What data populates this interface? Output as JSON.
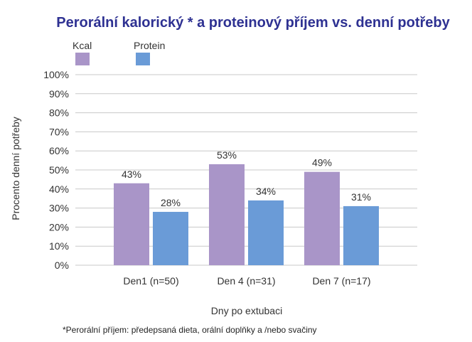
{
  "chart_data": {
    "type": "bar",
    "title": "Perorální kalorický * a proteinový příjem vs. denní potřeby",
    "xlabel": "Dny po extubaci",
    "ylabel": "Procento denní potřeby",
    "categories": [
      "Den1 (n=50)",
      "Den 4 (n=31)",
      "Den 7 (n=17)"
    ],
    "series": [
      {
        "name": "Kcal",
        "values": [
          43,
          53,
          49
        ],
        "data_labels": [
          "43%",
          "53%",
          "49%"
        ]
      },
      {
        "name": "Protein",
        "values": [
          28,
          34,
          31
        ],
        "data_labels": [
          "28%",
          "34%",
          "31%"
        ]
      }
    ],
    "ylim": [
      0,
      100
    ],
    "y_ticks": [
      "0%",
      "10%",
      "20%",
      "30%",
      "40%",
      "50%",
      "60%",
      "70%",
      "80%",
      "90%",
      "100%"
    ],
    "grid": true,
    "legend_position": "top-left",
    "footnote": "*Perorální příjem:  předepsaná dieta, orální doplňky a /nebo svačiny"
  },
  "colors": {
    "title": "#2E3192",
    "kcal": "#A995C8",
    "protein": "#6A9BD7",
    "grid": "#C8C8C8"
  }
}
